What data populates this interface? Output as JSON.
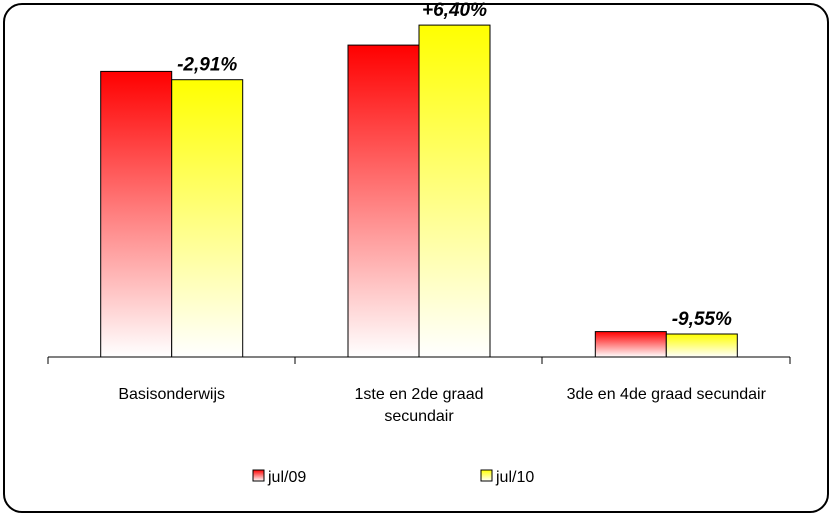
{
  "chart_data": {
    "type": "bar",
    "categories": [
      [
        "Basisonderwijs"
      ],
      [
        "1ste en 2de graad",
        "secundair"
      ],
      [
        "3de en 4de graad secundair"
      ]
    ],
    "series": [
      {
        "name": "jul/09",
        "values": [
          100,
          109.2,
          8.9
        ],
        "color": "#ff0000"
      },
      {
        "name": "jul/10",
        "values": [
          97.1,
          116.2,
          8.05
        ],
        "color": "#ffff00"
      }
    ],
    "annotations": [
      "-2,91%",
      "+6,40%",
      "-9,55%"
    ],
    "ylim": [
      0,
      125
    ],
    "grid": false,
    "legend": "bottom"
  }
}
